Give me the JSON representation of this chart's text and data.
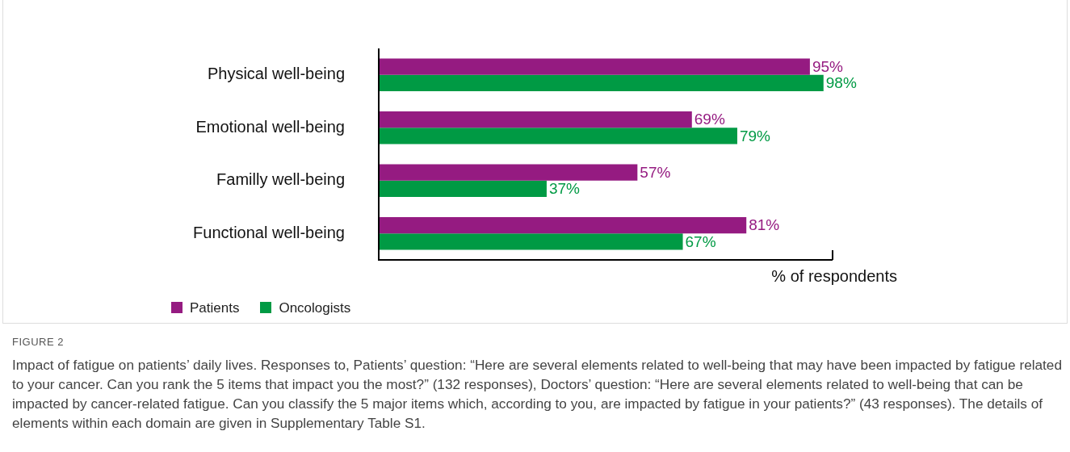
{
  "chart_data": {
    "type": "bar",
    "orientation": "horizontal",
    "categories": [
      "Physical well-being",
      "Emotional well-being",
      "Familly well-being",
      "Functional well-being"
    ],
    "series": [
      {
        "name": "Patients",
        "color": "#951b81",
        "values": [
          95,
          69,
          57,
          81
        ],
        "value_labels": [
          "95%",
          "69%",
          "57%",
          "81%"
        ]
      },
      {
        "name": "Oncologists",
        "color": "#009a44",
        "values": [
          98,
          79,
          37,
          67
        ],
        "value_labels": [
          "98%",
          "79%",
          "37%",
          "67%"
        ]
      }
    ],
    "xlim": [
      0,
      100
    ],
    "xticks": [
      {
        "value": 100,
        "label": null
      }
    ],
    "tick_labels": "y",
    "xlabel": "% of respondents",
    "grid": false,
    "legend": "bottom left",
    "annotations": [
      "FIGURE 2",
      "Impact of fatigue on patients’ daily lives. Responses to, Patients’ question: “Here are several elements related to well-being that may have been impacted by fatigue related to your cancer. Can you rank the 5 items that impact you the most?” (132 responses), Doctors’ question: “Here are several elements related to well-being that can be impacted by cancer-related fatigue. Can you classify the 5 major items which, according to you, are impacted by fatigue in your patients?” (43 responses). The details of elements within each domain are given in Supplementary Table S1."
    ]
  }
}
